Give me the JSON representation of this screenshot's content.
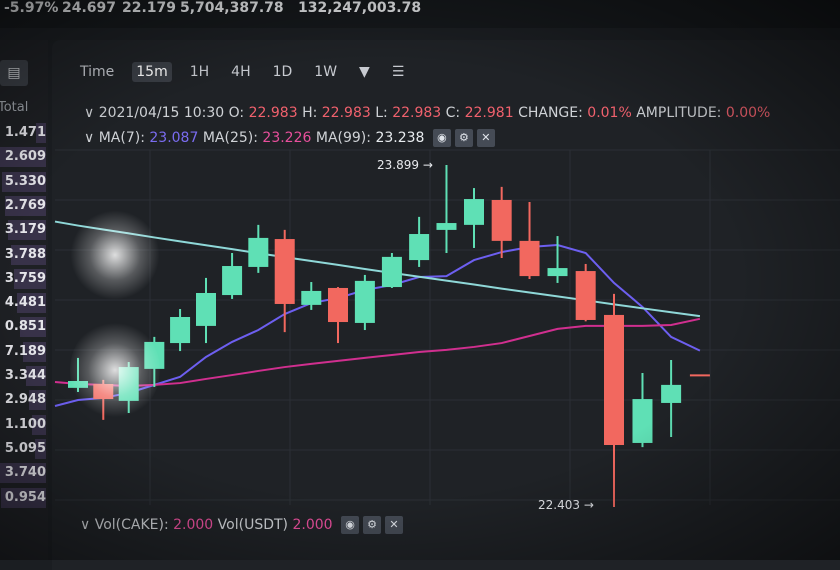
{
  "ticker": {
    "change": "-5.97%",
    "high": "24.697",
    "low": "22.179",
    "volume_base": "5,704,387.78",
    "volume_quote": "132,247,003.78"
  },
  "sidebar": {
    "icon": "wallet-icon",
    "header": "Total",
    "totals": [
      "1.471",
      "2.609",
      "5.330",
      "2.769",
      "3.179",
      "3.788",
      "3.759",
      "4.481",
      "0.851",
      "7.189",
      "3.344",
      "2.948",
      "1.100",
      "5.095",
      "3.740",
      "0.954"
    ]
  },
  "toolbar": {
    "items": [
      "Time",
      "15m",
      "1H",
      "4H",
      "1D",
      "1W"
    ],
    "active": "15m",
    "more_icon": "caret-down-icon",
    "settings_icon": "sliders-icon"
  },
  "ohlc": {
    "date": "2021/04/15 10:30",
    "o_label": "O:",
    "o": "22.983",
    "h_label": "H:",
    "h": "22.983",
    "l_label": "L:",
    "l": "22.983",
    "c_label": "C:",
    "c": "22.981",
    "change_label": "CHANGE:",
    "change": "0.01%",
    "amplitude_label": "AMPLITUDE:",
    "amplitude": "0.00%"
  },
  "ma": {
    "ma7_label": "MA(7):",
    "ma7": "23.087",
    "ma25_label": "MA(25):",
    "ma25": "23.226",
    "ma99_label": "MA(99):",
    "ma99": "23.238"
  },
  "vol": {
    "base_label": "Vol(CAKE):",
    "base": "2.000",
    "quote_label": "Vol(USDT)",
    "quote": "2.000"
  },
  "colors": {
    "up": "#5fe0b5",
    "down": "#f2685f",
    "ma7": "#6d5ff0",
    "ma25": "#d02f8f",
    "ma99": "#8fd8d8"
  },
  "chart_data": {
    "type": "candlestick",
    "ylim": [
      22.3,
      24.0
    ],
    "grid": true,
    "annotations": [
      {
        "text": "23.899",
        "value": 23.899
      },
      {
        "text": "22.403",
        "value": 22.403
      }
    ],
    "candles": [
      {
        "o": 22.924,
        "h": 23.055,
        "l": 22.906,
        "c": 22.954
      },
      {
        "o": 22.941,
        "h": 22.959,
        "l": 22.784,
        "c": 22.875
      },
      {
        "o": 22.867,
        "h": 23.037,
        "l": 22.814,
        "c": 23.015
      },
      {
        "o": 23.007,
        "h": 23.147,
        "l": 22.928,
        "c": 23.125
      },
      {
        "o": 23.12,
        "h": 23.269,
        "l": 23.085,
        "c": 23.234
      },
      {
        "o": 23.195,
        "h": 23.405,
        "l": 23.12,
        "c": 23.339
      },
      {
        "o": 23.33,
        "h": 23.514,
        "l": 23.313,
        "c": 23.457
      },
      {
        "o": 23.453,
        "h": 23.637,
        "l": 23.427,
        "c": 23.58
      },
      {
        "o": 23.575,
        "h": 23.615,
        "l": 23.168,
        "c": 23.291
      },
      {
        "o": 23.287,
        "h": 23.387,
        "l": 23.265,
        "c": 23.348
      },
      {
        "o": 23.361,
        "h": 23.365,
        "l": 23.12,
        "c": 23.212
      },
      {
        "o": 23.208,
        "h": 23.418,
        "l": 23.177,
        "c": 23.392
      },
      {
        "o": 23.365,
        "h": 23.514,
        "l": 23.361,
        "c": 23.497
      },
      {
        "o": 23.483,
        "h": 23.672,
        "l": 23.453,
        "c": 23.597
      },
      {
        "o": 23.615,
        "h": 23.899,
        "l": 23.514,
        "c": 23.645
      },
      {
        "o": 23.637,
        "h": 23.798,
        "l": 23.536,
        "c": 23.75
      },
      {
        "o": 23.746,
        "h": 23.803,
        "l": 23.492,
        "c": 23.567
      },
      {
        "o": 23.567,
        "h": 23.737,
        "l": 23.4,
        "c": 23.413
      },
      {
        "o": 23.413,
        "h": 23.588,
        "l": 23.383,
        "c": 23.448
      },
      {
        "o": 23.435,
        "h": 23.466,
        "l": 23.215,
        "c": 23.221
      },
      {
        "o": 23.243,
        "h": 23.335,
        "l": 22.403,
        "c": 22.674
      },
      {
        "o": 22.683,
        "h": 22.989,
        "l": 22.665,
        "c": 22.875
      },
      {
        "o": 22.858,
        "h": 23.046,
        "l": 22.709,
        "c": 22.937
      },
      {
        "o": 22.983,
        "h": 22.983,
        "l": 22.983,
        "c": 22.981
      }
    ],
    "series": [
      {
        "name": "MA(7)",
        "values": [
          22.871,
          22.88,
          22.902,
          22.937,
          22.972,
          23.059,
          23.125,
          23.177,
          23.247,
          23.295,
          23.317,
          23.352,
          23.374,
          23.409,
          23.413,
          23.483,
          23.518,
          23.54,
          23.549,
          23.514,
          23.383,
          23.278,
          23.147,
          23.087
        ]
      },
      {
        "name": "MA(25)",
        "values": [
          22.941,
          22.937,
          22.932,
          22.937,
          22.945,
          22.963,
          22.98,
          22.998,
          23.015,
          23.029,
          23.042,
          23.055,
          23.068,
          23.081,
          23.09,
          23.103,
          23.12,
          23.151,
          23.182,
          23.195,
          23.195,
          23.195,
          23.199,
          23.226
        ]
      },
      {
        "name": "MA(99)",
        "values": [
          23.634,
          23.617,
          23.6,
          23.582,
          23.565,
          23.548,
          23.531,
          23.513,
          23.496,
          23.479,
          23.462,
          23.444,
          23.427,
          23.41,
          23.393,
          23.376,
          23.358,
          23.341,
          23.324,
          23.307,
          23.289,
          23.272,
          23.255,
          23.238
        ]
      }
    ]
  }
}
